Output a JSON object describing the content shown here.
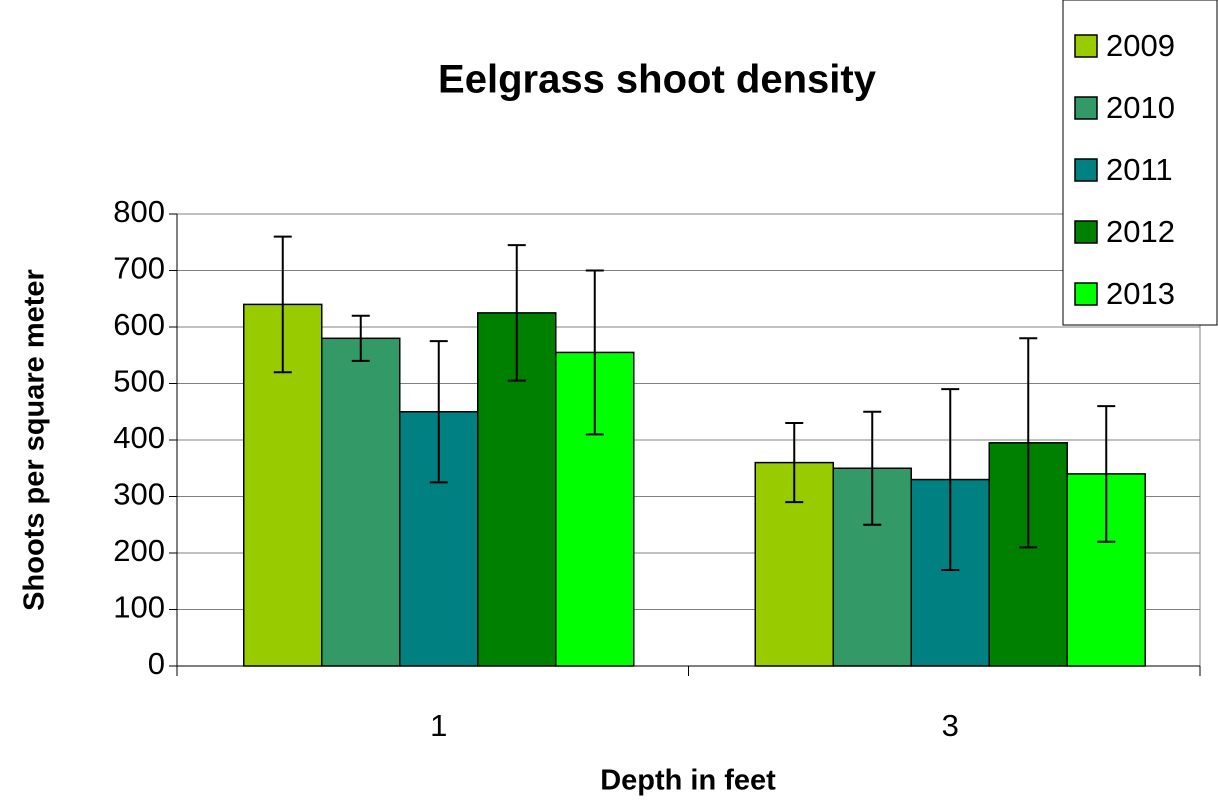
{
  "chart_data": {
    "type": "bar",
    "title": "Eelgrass shoot density",
    "x_label": "Depth in feet",
    "y_label": "Shoots per square meter",
    "categories": [
      "1",
      "3"
    ],
    "series": [
      {
        "name": "2009",
        "color": "#99cc00",
        "values": [
          640,
          360
        ],
        "errors": [
          120,
          70
        ]
      },
      {
        "name": "2010",
        "color": "#339966",
        "values": [
          580,
          350
        ],
        "errors": [
          40,
          100
        ]
      },
      {
        "name": "2011",
        "color": "#008080",
        "values": [
          450,
          330
        ],
        "errors": [
          125,
          160
        ]
      },
      {
        "name": "2012",
        "color": "#008000",
        "values": [
          625,
          395
        ],
        "errors": [
          120,
          185
        ]
      },
      {
        "name": "2013",
        "color": "#00ff00",
        "values": [
          555,
          340
        ],
        "errors": [
          145,
          120
        ]
      }
    ],
    "ylim": [
      0,
      800
    ],
    "yticks": [
      0,
      100,
      200,
      300,
      400,
      500,
      600,
      700,
      800
    ],
    "grid": true,
    "legend": "top-right"
  }
}
